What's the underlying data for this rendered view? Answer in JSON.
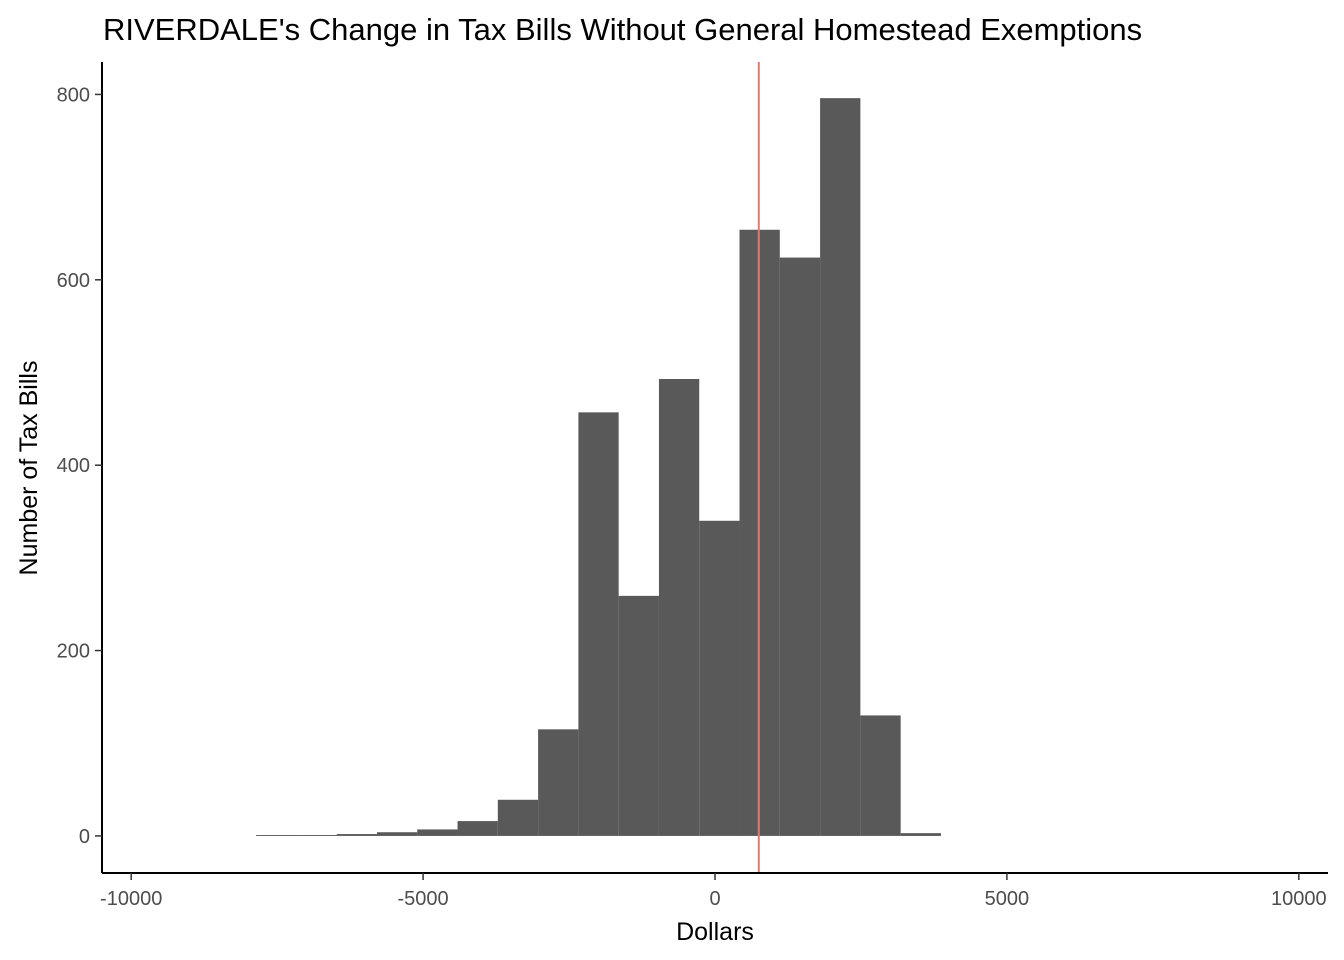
{
  "chart_data": {
    "type": "bar",
    "title": "RIVERDALE's Change in Tax Bills Without General Homestead Exemptions",
    "xlabel": "Dollars",
    "ylabel": "Number of Tax Bills",
    "xlim": [
      -10500,
      10500
    ],
    "ylim": [
      -40,
      835
    ],
    "x_ticks": [
      -10000,
      -5000,
      0,
      5000,
      10000
    ],
    "x_tick_labels": [
      "-10000",
      "-5000",
      "0",
      "5000",
      "10000"
    ],
    "y_ticks": [
      0,
      200,
      400,
      600,
      800
    ],
    "y_tick_labels": [
      "0",
      "200",
      "400",
      "600",
      "800"
    ],
    "bin_width": 690,
    "bins": [
      {
        "start": -7860,
        "end": -7170,
        "count": 1
      },
      {
        "start": -7170,
        "end": -6480,
        "count": 1
      },
      {
        "start": -6480,
        "end": -5790,
        "count": 2
      },
      {
        "start": -5790,
        "end": -5100,
        "count": 4
      },
      {
        "start": -5100,
        "end": -4410,
        "count": 7
      },
      {
        "start": -4410,
        "end": -3720,
        "count": 16
      },
      {
        "start": -3720,
        "end": -3030,
        "count": 39
      },
      {
        "start": -3030,
        "end": -2340,
        "count": 115
      },
      {
        "start": -2340,
        "end": -1650,
        "count": 457
      },
      {
        "start": -1650,
        "end": -960,
        "count": 259
      },
      {
        "start": -960,
        "end": -270,
        "count": 493
      },
      {
        "start": -270,
        "end": 420,
        "count": 340
      },
      {
        "start": 420,
        "end": 1110,
        "count": 654
      },
      {
        "start": 1110,
        "end": 1800,
        "count": 624
      },
      {
        "start": 1800,
        "end": 2490,
        "count": 796
      },
      {
        "start": 2490,
        "end": 3180,
        "count": 130
      },
      {
        "start": 3180,
        "end": 3870,
        "count": 3
      }
    ],
    "reference_line": {
      "x": 750,
      "color": "#e07b6f"
    },
    "bar_color": "#595959",
    "grid": false,
    "legend": "none"
  }
}
